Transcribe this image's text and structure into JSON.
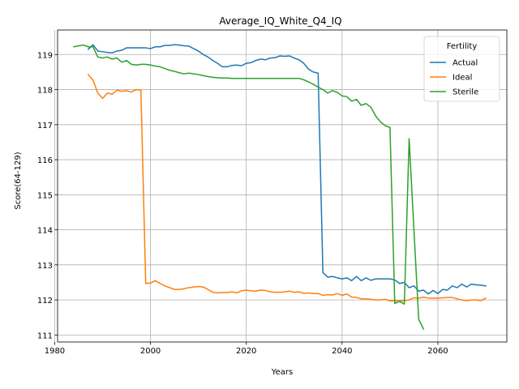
{
  "chart_data": {
    "type": "line",
    "title": "Average_IQ_White_Q4_IQ",
    "xlabel": "Years",
    "ylabel": "Score(64-129)",
    "xlim": [
      1980.6,
      2074.4
    ],
    "ylim": [
      110.8,
      119.7
    ],
    "xticks": [
      1980,
      2000,
      2020,
      2040,
      2060
    ],
    "yticks": [
      111,
      112,
      113,
      114,
      115,
      116,
      117,
      118,
      119
    ],
    "grid": true,
    "legend": {
      "title": "Fertility",
      "position": "top-right"
    },
    "series": [
      {
        "name": "Actual",
        "color": "#1f77b4",
        "x": [
          1987,
          1988,
          1989,
          1990,
          1991,
          1992,
          1993,
          1994,
          1995,
          1996,
          1997,
          1998,
          1999,
          2000,
          2001,
          2002,
          2003,
          2004,
          2005,
          2006,
          2007,
          2008,
          2009,
          2010,
          2011,
          2012,
          2013,
          2014,
          2015,
          2016,
          2017,
          2018,
          2019,
          2020,
          2021,
          2022,
          2023,
          2024,
          2025,
          2026,
          2027,
          2028,
          2029,
          2030,
          2031,
          2032,
          2033,
          2034,
          2035,
          2036,
          2037,
          2038,
          2039,
          2040,
          2041,
          2042,
          2043,
          2044,
          2045,
          2046,
          2047,
          2048,
          2049,
          2050,
          2051,
          2052,
          2053,
          2054,
          2055,
          2056,
          2057,
          2058,
          2059,
          2060,
          2061,
          2062,
          2063,
          2064,
          2065,
          2066,
          2067,
          2068,
          2069,
          2070
        ],
        "y": [
          119.15,
          119.28,
          119.1,
          119.08,
          119.06,
          119.05,
          119.1,
          119.12,
          119.19,
          119.19,
          119.19,
          119.19,
          119.19,
          119.17,
          119.22,
          119.22,
          119.26,
          119.26,
          119.28,
          119.27,
          119.25,
          119.24,
          119.17,
          119.1,
          119.0,
          118.93,
          118.83,
          118.75,
          118.65,
          118.65,
          118.69,
          118.7,
          118.68,
          118.75,
          118.77,
          118.83,
          118.87,
          118.85,
          118.9,
          118.91,
          118.96,
          118.95,
          118.96,
          118.9,
          118.85,
          118.75,
          118.58,
          118.5,
          118.47,
          112.78,
          112.65,
          112.67,
          112.63,
          112.6,
          112.63,
          112.55,
          112.67,
          112.55,
          112.63,
          112.56,
          112.6,
          112.6,
          112.6,
          112.6,
          112.57,
          112.47,
          112.5,
          112.35,
          112.4,
          112.25,
          112.28,
          112.17,
          112.27,
          112.18,
          112.3,
          112.28,
          112.4,
          112.35,
          112.45,
          112.37,
          112.45,
          112.43,
          112.42,
          112.4
        ]
      },
      {
        "name": "Ideal",
        "color": "#ff7f0e",
        "x": [
          1987,
          1988,
          1989,
          1990,
          1991,
          1992,
          1993,
          1994,
          1995,
          1996,
          1997,
          1998,
          1999,
          2000,
          2001,
          2002,
          2003,
          2004,
          2005,
          2006,
          2007,
          2008,
          2009,
          2010,
          2011,
          2012,
          2013,
          2014,
          2015,
          2016,
          2017,
          2018,
          2019,
          2020,
          2021,
          2022,
          2023,
          2024,
          2025,
          2026,
          2027,
          2028,
          2029,
          2030,
          2031,
          2032,
          2033,
          2034,
          2035,
          2036,
          2037,
          2038,
          2039,
          2040,
          2041,
          2042,
          2043,
          2044,
          2045,
          2046,
          2047,
          2048,
          2049,
          2050,
          2051,
          2052,
          2053,
          2054,
          2055,
          2056,
          2057,
          2058,
          2059,
          2060,
          2061,
          2062,
          2063,
          2064,
          2065,
          2066,
          2067,
          2068,
          2069,
          2070
        ],
        "y": [
          118.43,
          118.27,
          117.9,
          117.75,
          117.9,
          117.87,
          117.98,
          117.95,
          117.97,
          117.93,
          118.0,
          117.98,
          112.47,
          112.48,
          112.55,
          112.47,
          112.4,
          112.35,
          112.3,
          112.3,
          112.32,
          112.35,
          112.37,
          112.38,
          112.37,
          112.3,
          112.22,
          112.2,
          112.21,
          112.21,
          112.23,
          112.2,
          112.26,
          112.28,
          112.26,
          112.25,
          112.28,
          112.27,
          112.23,
          112.22,
          112.22,
          112.23,
          112.25,
          112.22,
          112.23,
          112.19,
          112.2,
          112.18,
          112.18,
          112.13,
          112.15,
          112.14,
          112.18,
          112.13,
          112.17,
          112.08,
          112.07,
          112.03,
          112.03,
          112.02,
          112.0,
          112.0,
          112.02,
          111.97,
          111.98,
          111.97,
          111.98,
          112.0,
          112.06,
          112.05,
          112.08,
          112.05,
          112.05,
          112.05,
          112.06,
          112.07,
          112.07,
          112.03,
          112.0,
          111.98,
          112.0,
          112.0,
          111.98,
          112.05
        ]
      },
      {
        "name": "Sterile",
        "color": "#2ca02c",
        "x": [
          1984,
          1985,
          1986,
          1987,
          1988,
          1989,
          1990,
          1991,
          1992,
          1993,
          1994,
          1995,
          1996,
          1997,
          1998,
          1999,
          2000,
          2001,
          2002,
          2003,
          2004,
          2005,
          2006,
          2007,
          2008,
          2009,
          2010,
          2011,
          2012,
          2013,
          2014,
          2015,
          2016,
          2017,
          2018,
          2019,
          2020,
          2021,
          2022,
          2023,
          2024,
          2025,
          2026,
          2027,
          2028,
          2029,
          2030,
          2031,
          2032,
          2033,
          2034,
          2035,
          2036,
          2037,
          2038,
          2039,
          2040,
          2041,
          2042,
          2043,
          2044,
          2045,
          2046,
          2047,
          2048,
          2049,
          2050,
          2051,
          2052,
          2053,
          2054,
          2055,
          2056,
          2057
        ],
        "y": [
          119.22,
          119.25,
          119.27,
          119.22,
          119.22,
          118.93,
          118.9,
          118.93,
          118.87,
          118.9,
          118.78,
          118.83,
          118.72,
          118.7,
          118.72,
          118.72,
          118.7,
          118.67,
          118.65,
          118.6,
          118.55,
          118.52,
          118.48,
          118.45,
          118.47,
          118.45,
          118.43,
          118.4,
          118.37,
          118.35,
          118.34,
          118.33,
          118.33,
          118.32,
          118.32,
          118.32,
          118.32,
          118.32,
          118.32,
          118.32,
          118.32,
          118.32,
          118.32,
          118.32,
          118.32,
          118.32,
          118.32,
          118.32,
          118.28,
          118.22,
          118.15,
          118.07,
          118.0,
          117.9,
          117.97,
          117.92,
          117.82,
          117.8,
          117.67,
          117.72,
          117.55,
          117.6,
          117.5,
          117.25,
          117.08,
          116.97,
          116.92,
          111.9,
          111.96,
          111.88,
          116.6,
          114.0,
          111.45,
          111.17
        ]
      }
    ]
  }
}
